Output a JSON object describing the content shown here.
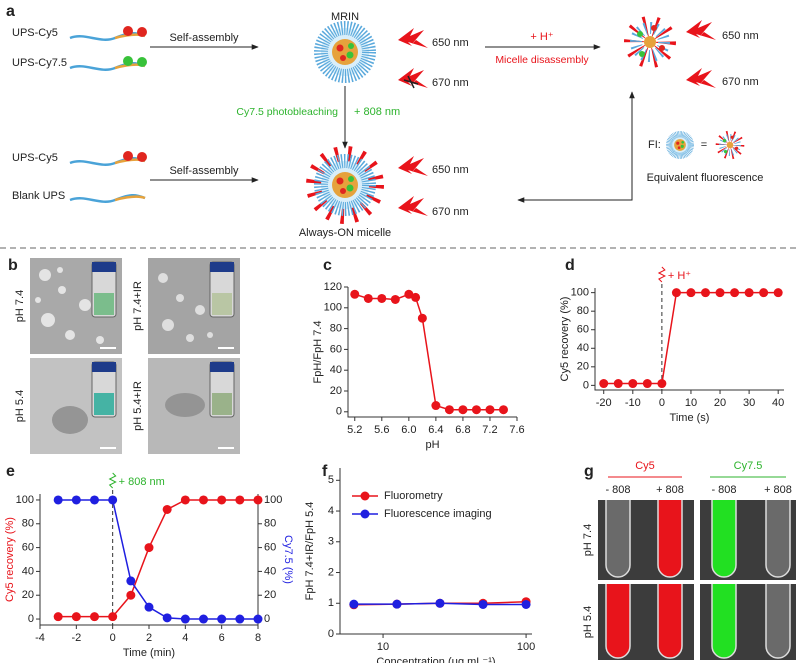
{
  "panel_a": {
    "label": "a",
    "row1": {
      "polymers": [
        "UPS-Cy5",
        "UPS-Cy7.5"
      ],
      "step": "Self-assembly",
      "micelle": "MRIN",
      "emissions": [
        "650 nm",
        "670 nm"
      ]
    },
    "acid": {
      "trigger": "+ H⁺",
      "step": "Micelle disassembly",
      "emissions": [
        "650 nm",
        "670 nm"
      ]
    },
    "bleach": {
      "step": "Cy7.5 photobleaching",
      "trigger": "+ 808 nm"
    },
    "row2": {
      "polymers": [
        "UPS-Cy5",
        "Blank UPS"
      ],
      "step": "Self-assembly",
      "micelle": "Always-ON micelle",
      "emissions": [
        "650 nm",
        "670 nm"
      ]
    },
    "fi": {
      "label": "FI:",
      "equals": "=",
      "caption": "Equivalent fluorescence"
    }
  },
  "panel_b": {
    "label": "b",
    "images": [
      "pH 7.4",
      "pH 7.4+IR",
      "pH 5.4",
      "pH 5.4+IR"
    ]
  },
  "chart_data": [
    {
      "type": "line",
      "label": "c",
      "xlabel": "pH",
      "ylabel": "FpH/FpH 7.4",
      "x": [
        5.2,
        5.4,
        5.6,
        5.8,
        6.0,
        6.1,
        6.2,
        6.4,
        6.6,
        6.8,
        7.0,
        7.2,
        7.4
      ],
      "series": [
        {
          "name": "FpH/FpH 7.4",
          "color": "#e8141b",
          "values": [
            113,
            109,
            109,
            108,
            113,
            110,
            90,
            6,
            2,
            2,
            2,
            2,
            2
          ]
        }
      ],
      "xlim": [
        5.1,
        7.6
      ],
      "xticks": [
        5.2,
        5.6,
        {
          "value": 6,
          "label": "6.0"
        },
        6.4,
        6.8,
        7.2,
        7.6
      ],
      "ylim": [
        -5,
        120
      ],
      "yticks": [
        0,
        20,
        40,
        60,
        80,
        100,
        120
      ]
    },
    {
      "type": "line",
      "label": "d",
      "xlabel": "Time (s)",
      "ylabel": "Cy5 recovery (%)",
      "annotation": {
        "text": "+ H⁺",
        "x": 0,
        "color": "#e8141b"
      },
      "x": [
        -20,
        -15,
        -10,
        -5,
        0,
        5,
        10,
        15,
        20,
        25,
        30,
        35,
        40
      ],
      "series": [
        {
          "name": "Cy5",
          "color": "#e8141b",
          "values": [
            2,
            2,
            2,
            2,
            2,
            100,
            100,
            100,
            100,
            100,
            100,
            100,
            100
          ]
        }
      ],
      "xlim": [
        -23,
        42
      ],
      "xticks": [
        -20,
        -10,
        0,
        10,
        20,
        30,
        40
      ],
      "ylim": [
        -5,
        105
      ],
      "yticks": [
        0,
        20,
        40,
        60,
        80,
        100
      ]
    },
    {
      "type": "line",
      "label": "e",
      "xlabel": "Time (min)",
      "ylabel": "Cy5 recovery (%)",
      "y2label": "Cy7.5 (%)",
      "annotation": {
        "text": "+ 808 nm",
        "x": 0,
        "color": "#2db32d"
      },
      "x": [
        -3,
        -2,
        -1,
        0,
        1,
        2,
        3,
        4,
        5,
        6,
        7,
        8
      ],
      "series": [
        {
          "name": "Cy5 recovery (%)",
          "color": "#e8141b",
          "values": [
            2,
            2,
            2,
            2,
            20,
            60,
            92,
            100,
            100,
            100,
            100,
            100
          ]
        },
        {
          "name": "Cy7.5 (%)",
          "color": "#1f1fe0",
          "axis": "y2",
          "values": [
            100,
            100,
            100,
            100,
            32,
            10,
            1,
            0,
            0,
            0,
            0,
            0
          ]
        }
      ],
      "xlim": [
        -4,
        8
      ],
      "xticks": [
        -4,
        -2,
        0,
        2,
        4,
        6,
        8
      ],
      "ylim": [
        -5,
        105
      ],
      "yticks": [
        0,
        20,
        40,
        60,
        80,
        100
      ],
      "y2lim": [
        -5,
        105
      ],
      "y2ticks": [
        0,
        20,
        40,
        60,
        80,
        100
      ]
    },
    {
      "type": "line",
      "label": "f",
      "xlabel": "Concentration (μg mL⁻¹)",
      "ylabel": "FpH 7.4+IR/FpH 5.4",
      "x": [
        6.25,
        12.5,
        25,
        50,
        100
      ],
      "xlog": true,
      "legend": "upper left",
      "series": [
        {
          "name": "Fluorometry",
          "color": "#e8141b",
          "values": [
            0.95,
            0.97,
            1.0,
            1.0,
            1.05
          ]
        },
        {
          "name": "Fluorescence imaging",
          "color": "#1f1fe0",
          "values": [
            0.97,
            0.97,
            1.0,
            0.96,
            0.96
          ]
        }
      ],
      "xlim": [
        5,
        110
      ],
      "xticks": [
        10,
        100
      ],
      "ylim": [
        0,
        5.4
      ],
      "yticks": [
        0,
        1,
        2,
        3,
        4,
        5
      ]
    }
  ],
  "panel_g": {
    "label": "g",
    "dyes": [
      "Cy5",
      "Cy7.5"
    ],
    "conditions": [
      "- 808",
      "+ 808",
      "- 808",
      "+ 808"
    ],
    "rows": [
      "pH 7.4",
      "pH 5.4"
    ]
  }
}
